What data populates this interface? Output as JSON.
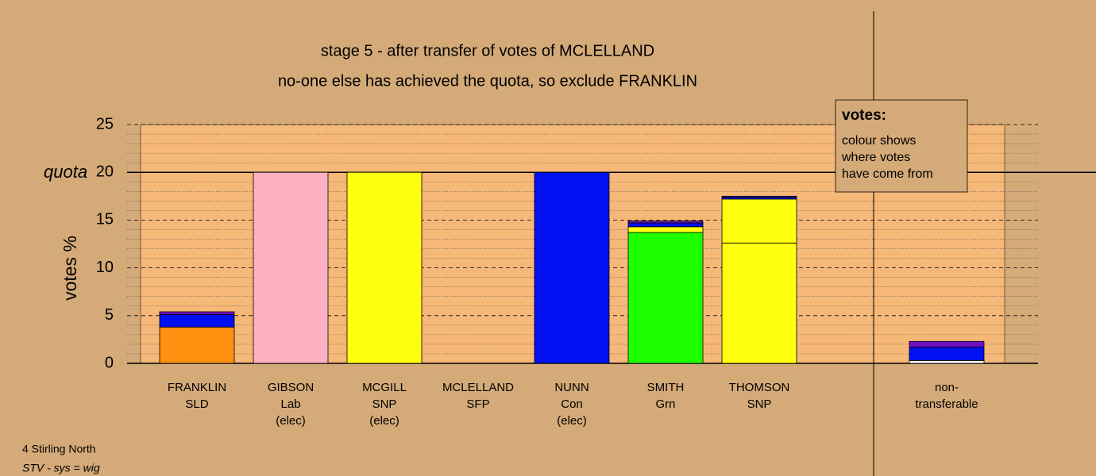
{
  "chart_data": {
    "type": "stacked-bar",
    "title": "stage 5 - after transfer of votes of MCLELLAND",
    "subtitle": "no-one else has achieved the quota, so exclude FRANKLIN",
    "y_label": "votes %",
    "categories": [
      [
        "FRANKLIN",
        "SLD"
      ],
      [
        "GIBSON",
        "Lab",
        "(elec)"
      ],
      [
        "MCGILL",
        "SNP",
        "(elec)"
      ],
      [
        "MCLELLAND",
        "SFP"
      ],
      [
        "NUNN",
        "Con",
        "(elec)"
      ],
      [
        "SMITH",
        "Grn"
      ],
      [
        "THOMSON",
        "SNP"
      ],
      [
        "non-",
        "transferable"
      ]
    ],
    "series": [
      {
        "color": "#ffffff",
        "values": [
          0,
          0,
          0,
          0,
          0,
          0,
          0,
          0.3
        ]
      },
      {
        "color": "#ff9010",
        "values": [
          3.8,
          0,
          0,
          0,
          0,
          0,
          0,
          0
        ]
      },
      {
        "color": "#ffb0c0",
        "values": [
          0,
          20,
          0,
          0,
          0,
          0,
          0,
          0
        ]
      },
      {
        "color": "#20ff00",
        "values": [
          0,
          0,
          0,
          0,
          0,
          13.7,
          0,
          0
        ]
      },
      {
        "color": "#ffff10",
        "values": [
          0,
          0,
          20,
          0,
          0,
          0,
          12.6,
          0
        ]
      },
      {
        "color": "#ffff10",
        "values": [
          0,
          0,
          0,
          0,
          0,
          0.6,
          4.6,
          0
        ]
      },
      {
        "color": "#0010f0",
        "values": [
          1.3,
          0,
          0,
          0,
          20,
          0.4,
          0.2,
          1.4
        ]
      },
      {
        "color": "#7010c0",
        "values": [
          0.3,
          0,
          0,
          0,
          0,
          0.2,
          0.1,
          0.6
        ]
      }
    ],
    "ylim": [
      0,
      25
    ],
    "yticks": [
      0,
      5,
      10,
      15,
      20,
      25
    ],
    "quota": {
      "value": 20,
      "label": "quota"
    },
    "note": {
      "heading": "votes:",
      "lines": [
        "colour shows",
        "where votes",
        "have come from"
      ]
    },
    "footer": [
      "4 Stirling North",
      "STV - sys = wig"
    ]
  }
}
